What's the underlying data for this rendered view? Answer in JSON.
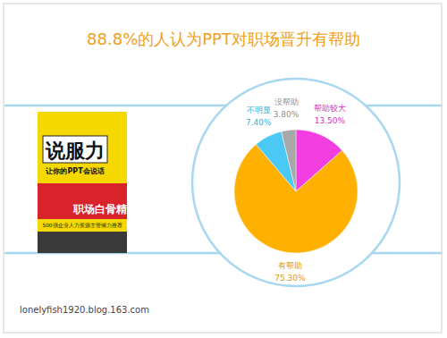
{
  "chart_data": {
    "type": "pie",
    "title": "88.8%的人认为PPT对职场晋升有帮助",
    "categories": [
      "帮助较大",
      "有帮助",
      "不明显",
      "没帮助"
    ],
    "values": [
      13.5,
      75.3,
      7.4,
      3.8
    ],
    "value_labels": [
      "13.50%",
      "75.30%",
      "7.40%",
      "3.80%"
    ],
    "colors": [
      "#f23ee0",
      "#ffb000",
      "#4cc8f4",
      "#a8a8a8"
    ],
    "data_labels": true,
    "annotations": [
      "说服力",
      "让你的PPT会说话",
      "职场白骨精",
      "500强企业人力资源主管倾力推荐",
      "lonelyfish1920.blog.163.com"
    ]
  }
}
